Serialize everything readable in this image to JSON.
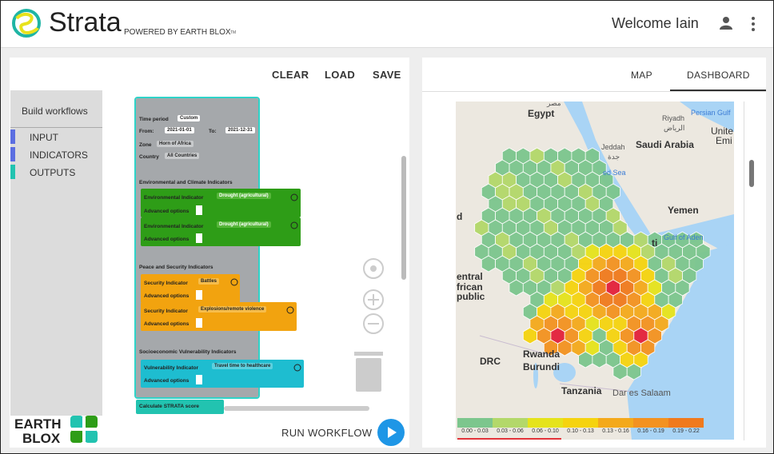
{
  "header": {
    "brand": "Strata",
    "powered": "POWERED BY EARTH BLOX",
    "tm": "TM",
    "welcome": "Welcome Iain"
  },
  "toolbar": [
    "CLEAR",
    "LOAD",
    "SAVE"
  ],
  "sidebar": {
    "title": "Build workflows",
    "items": [
      "INPUT",
      "INDICATORS",
      "OUTPUTS"
    ]
  },
  "workflow": {
    "time_label": "Time period",
    "time_value": "Custom",
    "from_label": "From:",
    "from": "2021-01-01",
    "to_label": "To:",
    "to": "2021-12-31",
    "zone_label": "Zone",
    "zone": "Horn of Africa",
    "country_label": "Country",
    "country": "All Countries",
    "sections": [
      "Environmental and Climate Indicators",
      "Peace and Security Indicators",
      "Socioeconomic Vulnerability Indicators"
    ],
    "blocks": [
      {
        "label": "Environmental Indicator",
        "value": "Drought (agricultural)",
        "advanced": "Advanced options"
      },
      {
        "label": "Environmental Indicator",
        "value": "Drought (agricultural)",
        "advanced": "Advanced options"
      },
      {
        "label": "Security Indicator",
        "value": "Battles",
        "advanced": "Advanced options"
      },
      {
        "label": "Security Indicator",
        "value": "Explosions/remote violence",
        "advanced": "Advanced options"
      },
      {
        "label": "Vulnerability Indicator",
        "value": "Travel time to healthcare",
        "advanced": "Advanced options"
      }
    ],
    "calculate": "Calculate STRATA score"
  },
  "run": "RUN WORKFLOW",
  "logo": [
    "EARTH",
    "BLOX"
  ],
  "tabs": [
    "MAP",
    "DASHBOARD"
  ],
  "map": {
    "labels": [
      "مصر",
      "Egypt",
      "Riyadh",
      "الرياض",
      "Saudi Arabia",
      "Persian Gulf",
      "Unite",
      "Emi",
      "Jeddah",
      "جدة",
      "ed Sea",
      "Yemen",
      "Gulf of Aden",
      "ti",
      "d",
      "entral",
      "frican",
      "public",
      "DRC",
      "Rwanda",
      "Burundi",
      "Tanzania",
      "Dar es Salaam"
    ]
  },
  "legend": [
    {
      "label": "0.00 - 0.03",
      "color": "#7cc68d"
    },
    {
      "label": "0.03 - 0.06",
      "color": "#b3d86a"
    },
    {
      "label": "0.06 - 0.10",
      "color": "#e5e31b"
    },
    {
      "label": "0.10 - 0.13",
      "color": "#f5d30f"
    },
    {
      "label": "0.13 - 0.16",
      "color": "#f4a91b"
    },
    {
      "label": "0.16 - 0.19",
      "color": "#f39220"
    },
    {
      "label": "0.19 - 0.22",
      "color": "#f07a1d"
    }
  ]
}
